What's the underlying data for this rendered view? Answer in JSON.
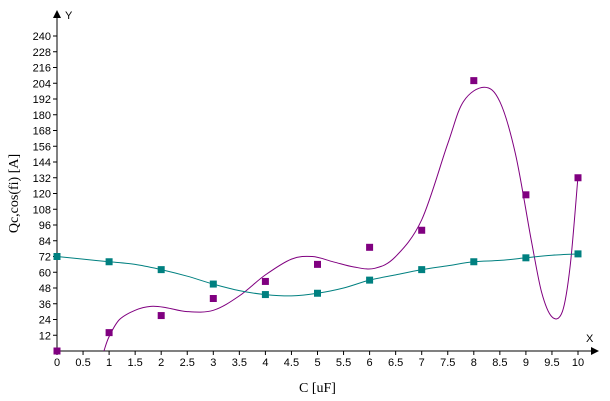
{
  "chart_data": {
    "type": "scatter",
    "xlabel": "C [uF]",
    "ylabel": "Qc,cos(fi) [A]",
    "x_axis_letter": "X",
    "y_axis_letter": "Y",
    "xlim": [
      0,
      10
    ],
    "ylim": [
      0,
      240
    ],
    "x_ticks": [
      0,
      0.5,
      1,
      1.5,
      2,
      2.5,
      3,
      3.5,
      4,
      4.5,
      5,
      5.5,
      6,
      6.5,
      7,
      7.5,
      8,
      8.5,
      9,
      9.5,
      10
    ],
    "x_tick_labels": [
      "0",
      "0.5",
      "1",
      "1.5",
      "2",
      "2.5",
      "3",
      "3.5",
      "4",
      "4.5",
      "5",
      "5.5",
      "6",
      "6.5",
      "7",
      "7.5",
      "8",
      "8.5",
      "9",
      "9.5",
      "10"
    ],
    "y_ticks": [
      12,
      24,
      36,
      48,
      60,
      72,
      84,
      96,
      108,
      120,
      132,
      144,
      156,
      168,
      180,
      192,
      204,
      216,
      228,
      240
    ],
    "y_tick_labels": [
      "12",
      "24",
      "36",
      "48",
      "60",
      "72",
      "84",
      "96",
      "108",
      "120",
      "132",
      "144",
      "156",
      "168",
      "180",
      "192",
      "204",
      "216",
      "228",
      "240"
    ],
    "grid": false,
    "series": [
      {
        "color": "#800080",
        "points": [
          [
            0,
            0
          ],
          [
            1,
            14
          ],
          [
            2,
            27
          ],
          [
            3,
            40
          ],
          [
            4,
            53
          ],
          [
            5,
            66
          ],
          [
            6,
            79
          ],
          [
            7,
            92
          ],
          [
            8,
            206
          ],
          [
            9,
            119
          ],
          [
            10,
            132
          ]
        ],
        "curve": [
          [
            0.9,
            0
          ],
          [
            1,
            11
          ],
          [
            1.2,
            24
          ],
          [
            1.5,
            31
          ],
          [
            1.8,
            34
          ],
          [
            2.1,
            33
          ],
          [
            2.5,
            30
          ],
          [
            3,
            31
          ],
          [
            3.5,
            42
          ],
          [
            4,
            58
          ],
          [
            4.5,
            70
          ],
          [
            4.9,
            72
          ],
          [
            5.3,
            68
          ],
          [
            5.7,
            64
          ],
          [
            6.1,
            63
          ],
          [
            6.5,
            72
          ],
          [
            7,
            100
          ],
          [
            7.5,
            158
          ],
          [
            7.8,
            190
          ],
          [
            8.2,
            201
          ],
          [
            8.5,
            190
          ],
          [
            8.8,
            150
          ],
          [
            9.1,
            85
          ],
          [
            9.3,
            45
          ],
          [
            9.5,
            26
          ],
          [
            9.7,
            30
          ],
          [
            9.85,
            65
          ],
          [
            10,
            133
          ]
        ]
      },
      {
        "color": "#008080",
        "points": [
          [
            0,
            72
          ],
          [
            1,
            68
          ],
          [
            2,
            62
          ],
          [
            3,
            51
          ],
          [
            4,
            43
          ],
          [
            5,
            44
          ],
          [
            6,
            54
          ],
          [
            7,
            62
          ],
          [
            8,
            68
          ],
          [
            9,
            71
          ],
          [
            10,
            74
          ]
        ],
        "curve": [
          [
            0,
            72
          ],
          [
            0.5,
            70
          ],
          [
            1,
            68
          ],
          [
            1.5,
            66
          ],
          [
            2,
            62
          ],
          [
            2.5,
            57
          ],
          [
            3,
            51
          ],
          [
            3.5,
            46
          ],
          [
            4,
            43
          ],
          [
            4.5,
            42
          ],
          [
            5,
            44
          ],
          [
            5.5,
            48
          ],
          [
            6,
            54
          ],
          [
            6.5,
            58
          ],
          [
            7,
            62
          ],
          [
            7.5,
            65
          ],
          [
            8,
            68
          ],
          [
            8.5,
            69
          ],
          [
            9,
            71
          ],
          [
            9.5,
            73
          ],
          [
            10,
            74
          ]
        ]
      }
    ]
  }
}
